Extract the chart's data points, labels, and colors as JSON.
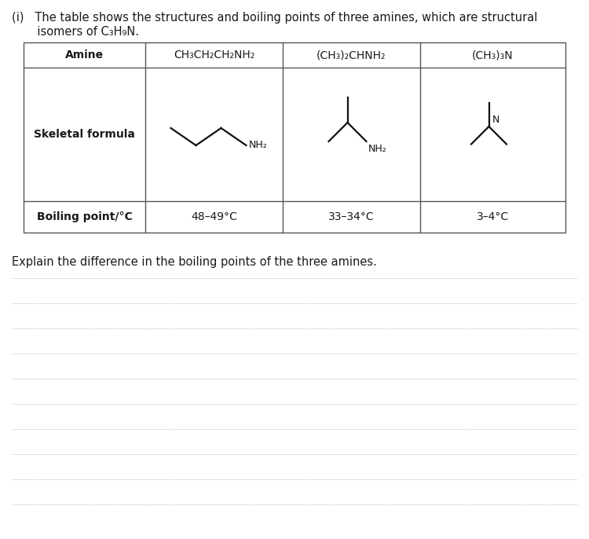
{
  "bg_color": "#ffffff",
  "text_color": "#1a1a1a",
  "table_border_color": "#555555",
  "line_color": "#aaaaaa",
  "sk_color": "#111111",
  "header_line1": "(i)   The table shows the structures and boiling points of three amines, which are structural",
  "header_line2": "       isomers of C₃H₉N.",
  "col_headers": [
    "Amine",
    "CH₃CH₂CH₂NH₂",
    "(CH₃)₂CHNH₂",
    "(CH₃)₃N"
  ],
  "row_labels": [
    "Skeletal formula",
    "Boiling point/°C"
  ],
  "boiling_points": [
    "48–49°C",
    "33–34°C",
    "3–4°C"
  ],
  "question": "Explain the difference in the boiling points of the three amines.",
  "num_answer_lines": 10,
  "font_size_header": 10.5,
  "font_size_table_header": 10,
  "font_size_table_body": 10,
  "font_size_question": 10.5,
  "lw_skeleton": 1.6,
  "lw_table": 1.0
}
